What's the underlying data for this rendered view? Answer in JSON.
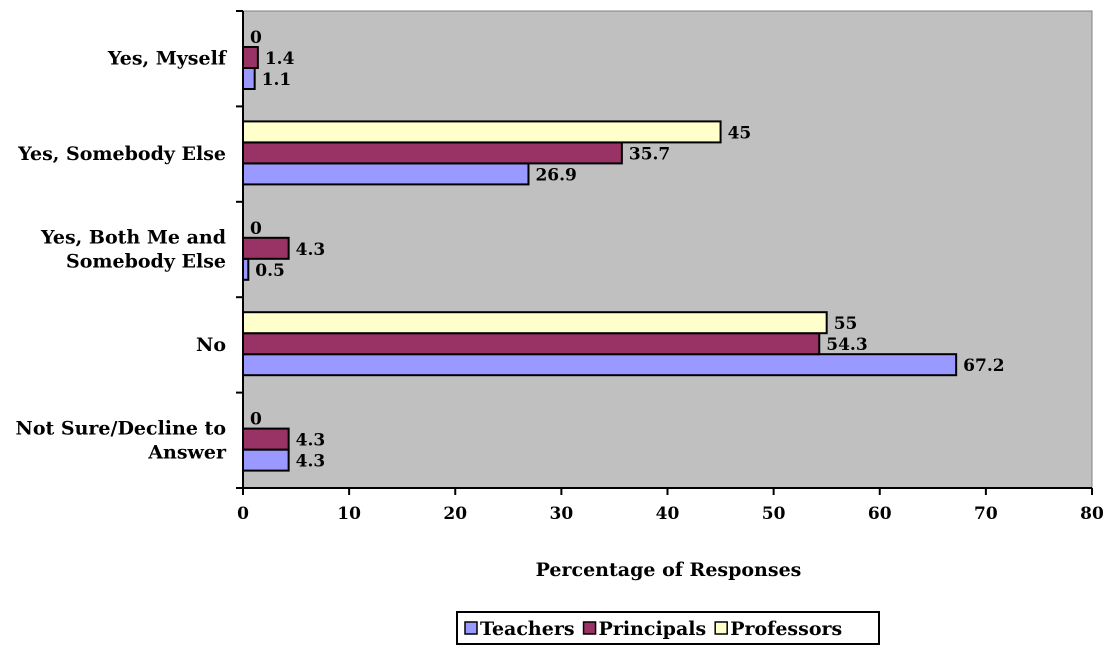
{
  "chart_data": {
    "type": "bar",
    "orientation": "horizontal",
    "categories": [
      [
        "Yes, Myself"
      ],
      [
        "Yes, Somebody Else"
      ],
      [
        "Yes, Both Me and",
        "Somebody Else"
      ],
      [
        "No"
      ],
      [
        "Not Sure/Decline to",
        "Answer"
      ]
    ],
    "series": [
      {
        "name": "Teachers",
        "color": "#9999ff",
        "values": [
          1.1,
          26.9,
          0.5,
          67.2,
          4.3
        ]
      },
      {
        "name": "Principals",
        "color": "#993366",
        "values": [
          1.4,
          35.7,
          4.3,
          54.3,
          4.3
        ]
      },
      {
        "name": "Professors",
        "color": "#ffffcc",
        "values": [
          0,
          45,
          0,
          55,
          0
        ]
      }
    ],
    "xlabel": "Percentage of Responses",
    "xlim": [
      0,
      80
    ],
    "xticks": [
      0,
      10,
      20,
      30,
      40,
      50,
      60,
      70,
      80
    ],
    "plot_background": "#c0c0c0",
    "grid": false,
    "legend_position": "bottom"
  }
}
